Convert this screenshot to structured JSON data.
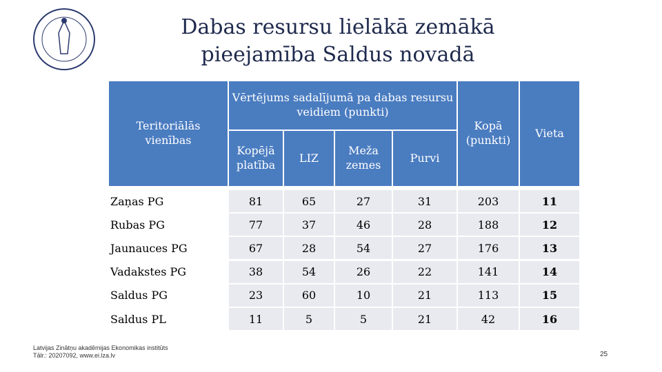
{
  "header": {
    "title_lines": [
      "Dabas resursu lielākā zemākā",
      "pieejamība Saldus novadā"
    ]
  },
  "table": {
    "left_header": "Teritoriālās vienības",
    "group_header": "Vērtējums sadalījumā pa dabas resursu veidiem  (punkti)",
    "subheaders": [
      "Kopējā platība",
      "LIZ",
      "Meža zemes",
      "Purvi"
    ],
    "total_header": "Kopā (punkti)",
    "rank_header": "Vieta",
    "rows": [
      [
        "Zaņas PG",
        81,
        65,
        27,
        31,
        203,
        11
      ],
      [
        "Rubas PG",
        77,
        37,
        46,
        28,
        188,
        12
      ],
      [
        "Jaunauces PG",
        67,
        28,
        54,
        27,
        176,
        13
      ],
      [
        "Vadakstes PG",
        38,
        54,
        26,
        22,
        141,
        14
      ],
      [
        "Saldus PG",
        23,
        60,
        10,
        21,
        113,
        15
      ],
      [
        "Saldus PL",
        11,
        5,
        5,
        21,
        42,
        16
      ]
    ]
  },
  "footer": {
    "lines": [
      "Latvijas Zinātņu akadēmijas Ekonomikas institūts",
      "Tālr.: 20207092, www.ei.lza.lv"
    ],
    "page_number": "25"
  }
}
